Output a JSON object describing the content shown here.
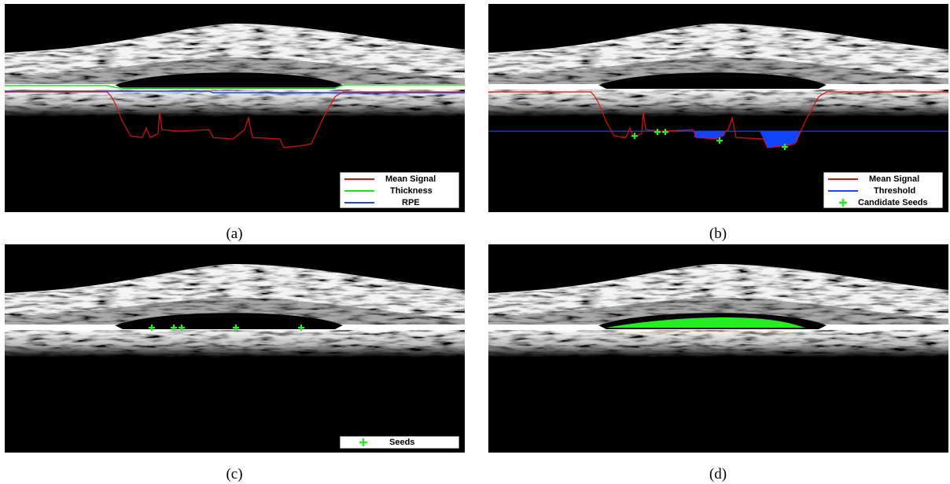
{
  "panels": [
    {
      "caption": "(a)",
      "legend": [
        "Mean Signal",
        "Thickness",
        "RPE"
      ]
    },
    {
      "caption": "(b)",
      "legend": [
        "Mean Signal",
        "Threshold",
        "Candidate Seeds"
      ]
    },
    {
      "caption": "(c)",
      "legend": [
        "Seeds"
      ]
    },
    {
      "caption": "(d)"
    }
  ]
}
